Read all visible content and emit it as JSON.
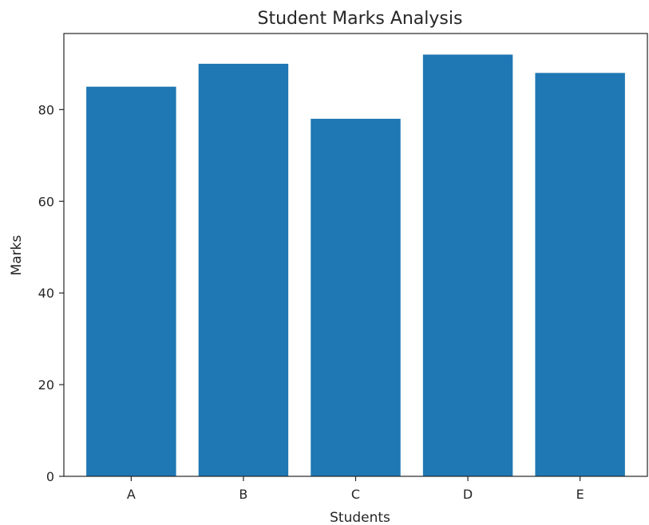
{
  "chart_data": {
    "type": "bar",
    "title": "Student Marks Analysis",
    "xlabel": "Students",
    "ylabel": "Marks",
    "categories": [
      "A",
      "B",
      "C",
      "D",
      "E"
    ],
    "values": [
      85,
      90,
      78,
      92,
      88
    ],
    "ylim": [
      0,
      96.6
    ],
    "yticks": [
      0,
      20,
      40,
      60,
      80
    ],
    "grid": false,
    "bar_color": "#1f77b4",
    "axis_color": "#262626"
  }
}
